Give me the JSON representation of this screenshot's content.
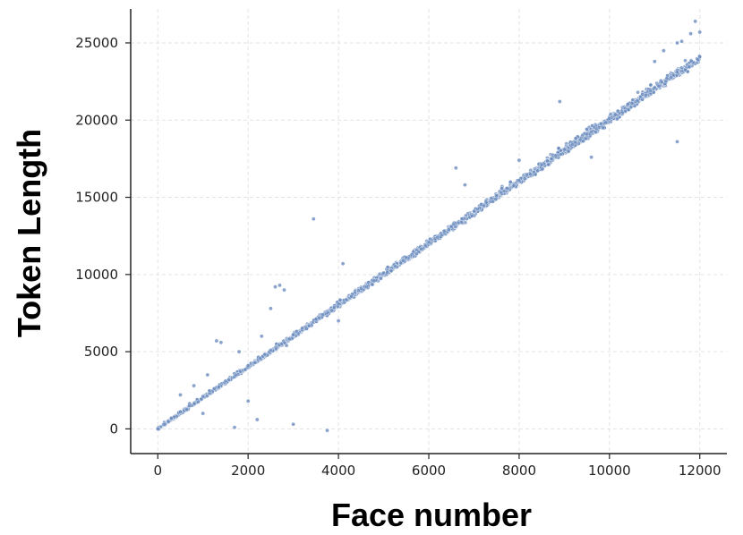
{
  "chart_data": {
    "type": "scatter",
    "title": "",
    "xlabel": "Face number",
    "ylabel": "Token Length",
    "xlim": [
      -600,
      12600
    ],
    "ylim": [
      -1600,
      27200
    ],
    "xticks": [
      0,
      2000,
      4000,
      6000,
      8000,
      10000,
      12000
    ],
    "yticks": [
      0,
      5000,
      10000,
      15000,
      20000,
      25000
    ],
    "grid": true,
    "color": "#6b8cbf",
    "trend": {
      "slope": 2.0,
      "intercept": 0,
      "x_range": [
        0,
        12000
      ]
    },
    "series": [
      {
        "values_note_x": "face number",
        "x": [
          0,
          150,
          300,
          500,
          700,
          1000,
          1250,
          1500,
          2000,
          2500,
          3000,
          3500,
          4000,
          4500,
          5000,
          5500,
          6000,
          6500,
          7000,
          7500,
          8000,
          8500,
          9000,
          9500,
          10000,
          10500,
          11000,
          11500,
          12000
        ],
        "y": [
          0,
          300,
          700,
          1100,
          1500,
          2100,
          2600,
          3100,
          4100,
          5100,
          6100,
          7100,
          8100,
          9100,
          10100,
          11100,
          12100,
          13100,
          14100,
          15100,
          16100,
          17100,
          18100,
          19100,
          20100,
          21100,
          22100,
          23100,
          24100
        ]
      },
      {
        "x": [
          500,
          800,
          1100,
          1300,
          1400,
          1800,
          2300,
          2500,
          2600,
          2700,
          2800,
          3450,
          4100,
          6600,
          6800,
          8000,
          8900,
          9500,
          11000,
          11200,
          11500,
          11600,
          11800,
          11900,
          12000,
          1000,
          1700,
          2000,
          2200,
          3000,
          3750,
          2850,
          4000,
          9600,
          11500
        ],
        "y": [
          2200,
          2800,
          3500,
          5700,
          5600,
          5000,
          6000,
          7800,
          9200,
          9300,
          9000,
          13600,
          10700,
          16900,
          15800,
          17400,
          21200,
          19400,
          23800,
          24500,
          25000,
          25100,
          25600,
          26400,
          25700,
          1000,
          100,
          1800,
          600,
          300,
          -100,
          5400,
          7000,
          17600,
          18600
        ]
      }
    ]
  }
}
